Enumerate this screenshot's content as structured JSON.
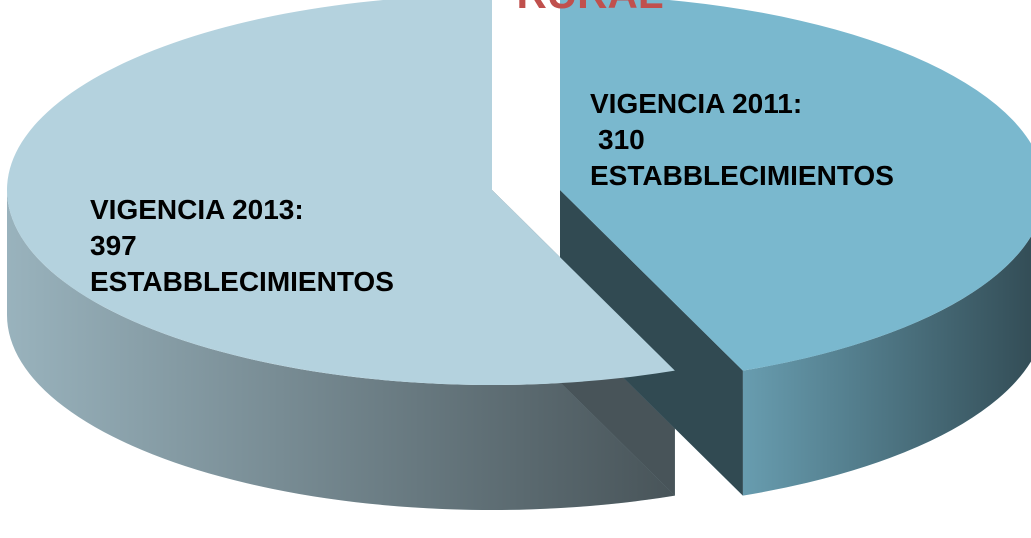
{
  "chart_data": {
    "type": "pie",
    "title": "RURAL",
    "categories": [
      "VIGENCIA 2011:",
      "VIGENCIA 2013:"
    ],
    "values": [
      310,
      397
    ],
    "unit_label": "ESTABBLECIMIENTOS",
    "colors": [
      "#7ab8ce",
      "#b4d2de"
    ]
  }
}
